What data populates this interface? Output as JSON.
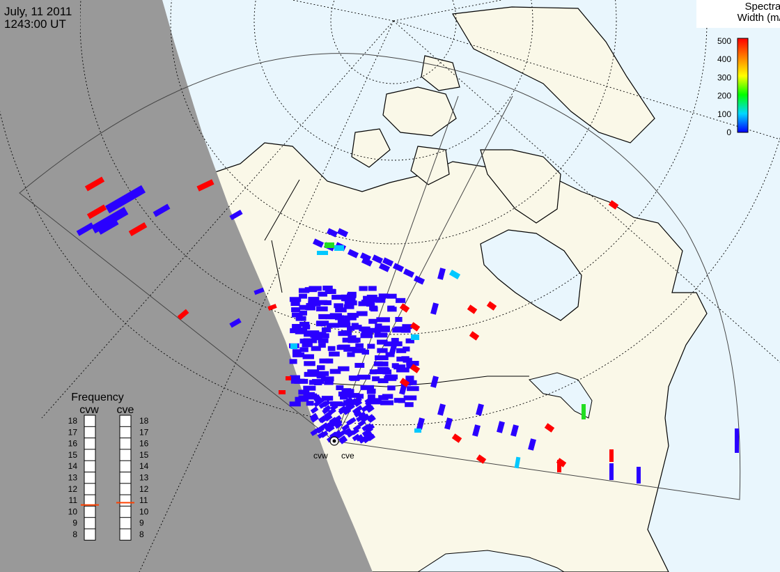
{
  "header": {
    "date": "July, 11 2011",
    "time": "1243:00 UT"
  },
  "colorbar": {
    "title_line1": "Spectral",
    "title_line2": "Width (m/s)",
    "ticks": [
      "0",
      "100",
      "200",
      "300",
      "400",
      "500"
    ],
    "colors": [
      "#0000ff",
      "#00d8ff",
      "#00ff00",
      "#ffff00",
      "#ff8000",
      "#ff0000"
    ]
  },
  "frequency": {
    "title": "Frequency",
    "left_radar": "cvw",
    "right_radar": "cve",
    "numbers": [
      "18",
      "17",
      "16",
      "15",
      "14",
      "13",
      "12",
      "11",
      "10",
      "9",
      "8"
    ],
    "cvw_value_mhz": 10.6,
    "cve_value_mhz": 10.8,
    "indicator_color": "#ff4000"
  },
  "radars": {
    "west": "cvw",
    "east": "cve"
  },
  "colors": {
    "ocean": "#e9f6fd",
    "land": "#faf8e8",
    "night": "#999999",
    "low_width": "#2a00ff",
    "high_width": "#ff0000"
  }
}
